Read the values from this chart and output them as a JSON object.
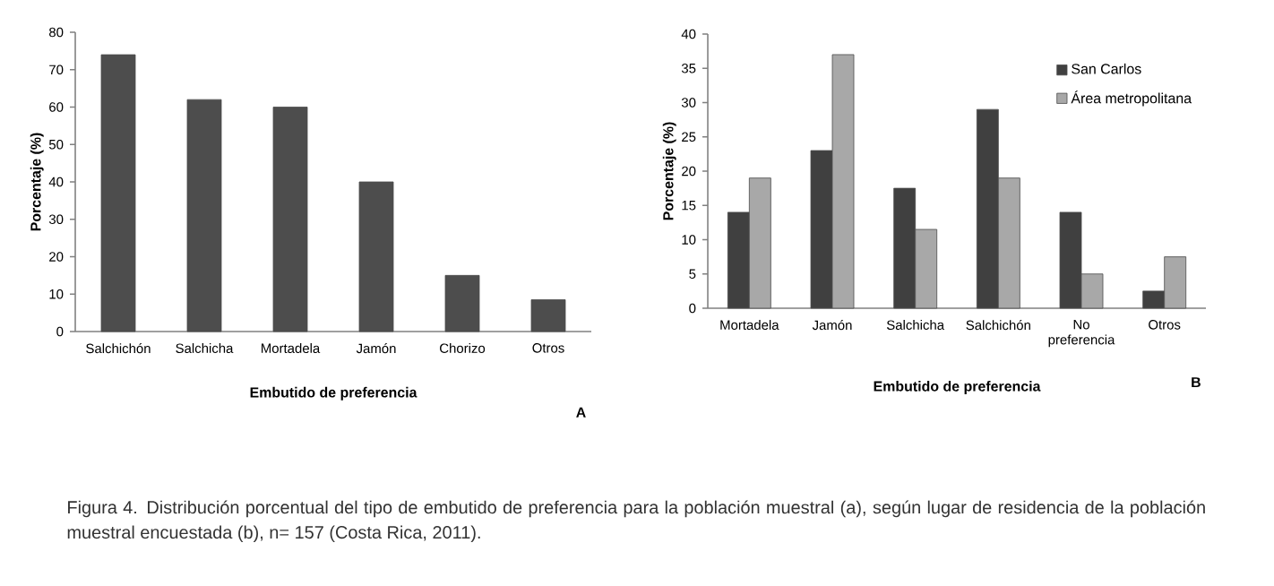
{
  "chart_data": [
    {
      "type": "bar",
      "xlabel": "Embutido de preferencia",
      "ylabel": "Porcentaje (%)",
      "categories": [
        "Salchichón",
        "Salchicha",
        "Mortadela",
        "Jamón",
        "Chorizo",
        "Otros"
      ],
      "values": [
        74,
        62,
        60,
        40,
        15,
        8.5
      ],
      "color": "#4d4d4d",
      "ylim": [
        0,
        80
      ],
      "yticks": [
        0,
        10,
        20,
        30,
        40,
        50,
        60,
        70,
        80
      ],
      "legend": false,
      "annotations": [
        "A",
        "Figura 4. Distribución porcentual del tipo de embutido de preferencia para la población muestral (a), según lugar de residencia de la población muestral encuestada (b), n= 157 (Costa Rica, 2011)."
      ]
    },
    {
      "type": "bar",
      "xlabel": "Embutido de preferencia",
      "ylabel": "Porcentaje (%)",
      "categories": [
        "Mortadela",
        "Jamón",
        "Salchicha",
        "Salchichón",
        "No preferencia",
        "Otros"
      ],
      "series": [
        {
          "name": "San Carlos",
          "color": "#404040",
          "values": [
            14,
            23,
            17.5,
            29,
            14,
            2.5
          ]
        },
        {
          "name": "Área metropolitana",
          "color": "#a8a8a8",
          "values": [
            19,
            37,
            11.5,
            19,
            5,
            7.5
          ]
        }
      ],
      "ylim": [
        0,
        40
      ],
      "yticks": [
        0,
        5,
        10,
        15,
        20,
        25,
        30,
        35,
        40
      ],
      "legend": "top right",
      "annotations": [
        "B"
      ]
    }
  ]
}
